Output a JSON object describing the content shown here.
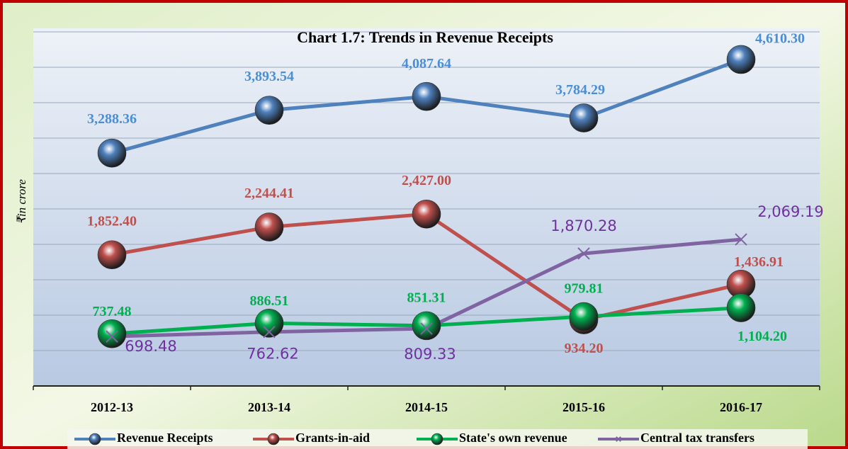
{
  "chart_data": {
    "type": "line",
    "title": "Chart 1.7: Trends in Revenue Receipts",
    "y_label": "₹in crore",
    "categories": [
      "2012-13",
      "2013-14",
      "2014-15",
      "2015-16",
      "2016-17"
    ],
    "ylim": [
      0,
      5000
    ],
    "yticks": [
      0,
      500,
      1000,
      1500,
      2000,
      2500,
      3000,
      3500,
      4000,
      4500,
      5000
    ],
    "grid": true,
    "legend": "bottom",
    "series": [
      {
        "name": "Revenue Receipts",
        "color": "#4f81bd",
        "label_color": "#4a8fd6",
        "marker": "ball",
        "values": [
          3288.36,
          3893.54,
          4087.64,
          3784.29,
          4610.3
        ],
        "value_labels": [
          "3,288.36",
          "3,893.54",
          "4,087.64",
          "3,784.29",
          "4,610.30"
        ]
      },
      {
        "name": "Grants-in-aid",
        "color": "#c0504d",
        "label_color": "#c0504d",
        "marker": "ball",
        "values": [
          1852.4,
          2244.41,
          2427.0,
          934.2,
          1436.91
        ],
        "value_labels": [
          "1,852.40",
          "2,244.41",
          "2,427.00",
          "934.20",
          "1,436.91"
        ]
      },
      {
        "name": "State's own revenue",
        "color": "#00b050",
        "label_color": "#00b050",
        "marker": "ball",
        "values": [
          737.48,
          886.51,
          851.31,
          979.81,
          1104.2
        ],
        "value_labels": [
          "737.48",
          "886.51",
          "851.31",
          "979.81",
          "1,104.20"
        ]
      },
      {
        "name": "Central tax transfers",
        "color": "#8064a2",
        "label_color": "#7030a0",
        "marker": "x",
        "values": [
          698.48,
          762.62,
          809.33,
          1870.28,
          2069.19
        ],
        "value_labels": [
          "698.48",
          "762.62",
          "809.33",
          "1,870.28",
          "2,069.19"
        ]
      }
    ]
  }
}
